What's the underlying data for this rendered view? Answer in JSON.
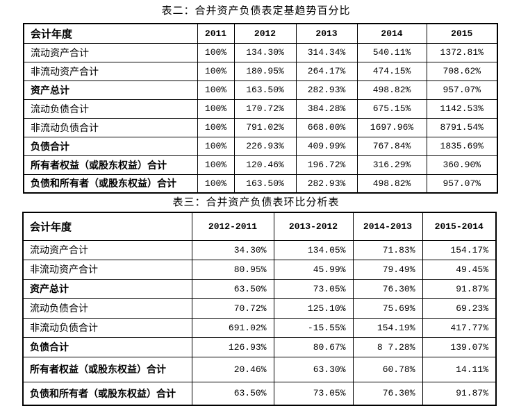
{
  "colors": {
    "background": "#ffffff",
    "text": "#000000",
    "border": "#000000"
  },
  "table2": {
    "title": "表二：合并资产负债表定基趋势百分比",
    "header": [
      "会计年度",
      "2011",
      "2012",
      "2013",
      "2014",
      "2015"
    ],
    "rows": [
      {
        "label": "流动资产合计",
        "bold": false,
        "values": [
          "100%",
          "134.30%",
          "314.34%",
          "540.11%",
          "1372.81%"
        ]
      },
      {
        "label": "非流动资产合计",
        "bold": false,
        "values": [
          "100%",
          "180.95%",
          "264.17%",
          "474.15%",
          "708.62%"
        ]
      },
      {
        "label": "资产总计",
        "bold": true,
        "values": [
          "100%",
          "163.50%",
          "282.93%",
          "498.82%",
          "957.07%"
        ]
      },
      {
        "label": "流动负债合计",
        "bold": false,
        "values": [
          "100%",
          "170.72%",
          "384.28%",
          "675.15%",
          "1142.53%"
        ]
      },
      {
        "label": "非流动负债合计",
        "bold": false,
        "values": [
          "100%",
          "791.02%",
          "668.00%",
          "1697.96%",
          "8791.54%"
        ]
      },
      {
        "label": "负债合计",
        "bold": true,
        "values": [
          "100%",
          "226.93%",
          "409.99%",
          "767.84%",
          "1835.69%"
        ]
      },
      {
        "label": "所有者权益（或股东权益）合计",
        "bold": true,
        "values": [
          "100%",
          "120.46%",
          "196.72%",
          "316.29%",
          "360.90%"
        ]
      },
      {
        "label": "负债和所有者（或股东权益）合计",
        "bold": true,
        "values": [
          "100%",
          "163.50%",
          "282.93%",
          "498.82%",
          "957.07%"
        ]
      }
    ]
  },
  "table3": {
    "title": "表三：合并资产负债表环比分析表",
    "header": [
      "会计年度",
      "2012-2011",
      "2013-2012",
      "2014-2013",
      "2015-2014"
    ],
    "rows": [
      {
        "label": "流动资产合计",
        "bold": false,
        "values": [
          "34.30%",
          "134.05%",
          "71.83%",
          "154.17%"
        ]
      },
      {
        "label": "非流动资产合计",
        "bold": false,
        "values": [
          "80.95%",
          "45.99%",
          "79.49%",
          "49.45%"
        ]
      },
      {
        "label": "资产总计",
        "bold": true,
        "values": [
          "63.50%",
          "73.05%",
          "76.30%",
          "91.87%"
        ]
      },
      {
        "label": "流动负债合计",
        "bold": false,
        "values": [
          "70.72%",
          "125.10%",
          "75.69%",
          "69.23%"
        ]
      },
      {
        "label": "非流动负债合计",
        "bold": false,
        "values": [
          "691.02%",
          "-15.55%",
          "154.19%",
          "417.77%"
        ]
      },
      {
        "label": "负债合计",
        "bold": true,
        "values": [
          "126.93%",
          "80.67%",
          "8 7.28%",
          "139.07%"
        ]
      },
      {
        "label": "所有者权益（或股东权益）合计",
        "bold": true,
        "values": [
          "20.46%",
          "63.30%",
          "60.78%",
          "14.11%"
        ]
      },
      {
        "label": "负债和所有者（或股东权益）合计",
        "bold": true,
        "values": [
          "63.50%",
          "73.05%",
          "76.30%",
          "91.87%"
        ]
      }
    ]
  }
}
